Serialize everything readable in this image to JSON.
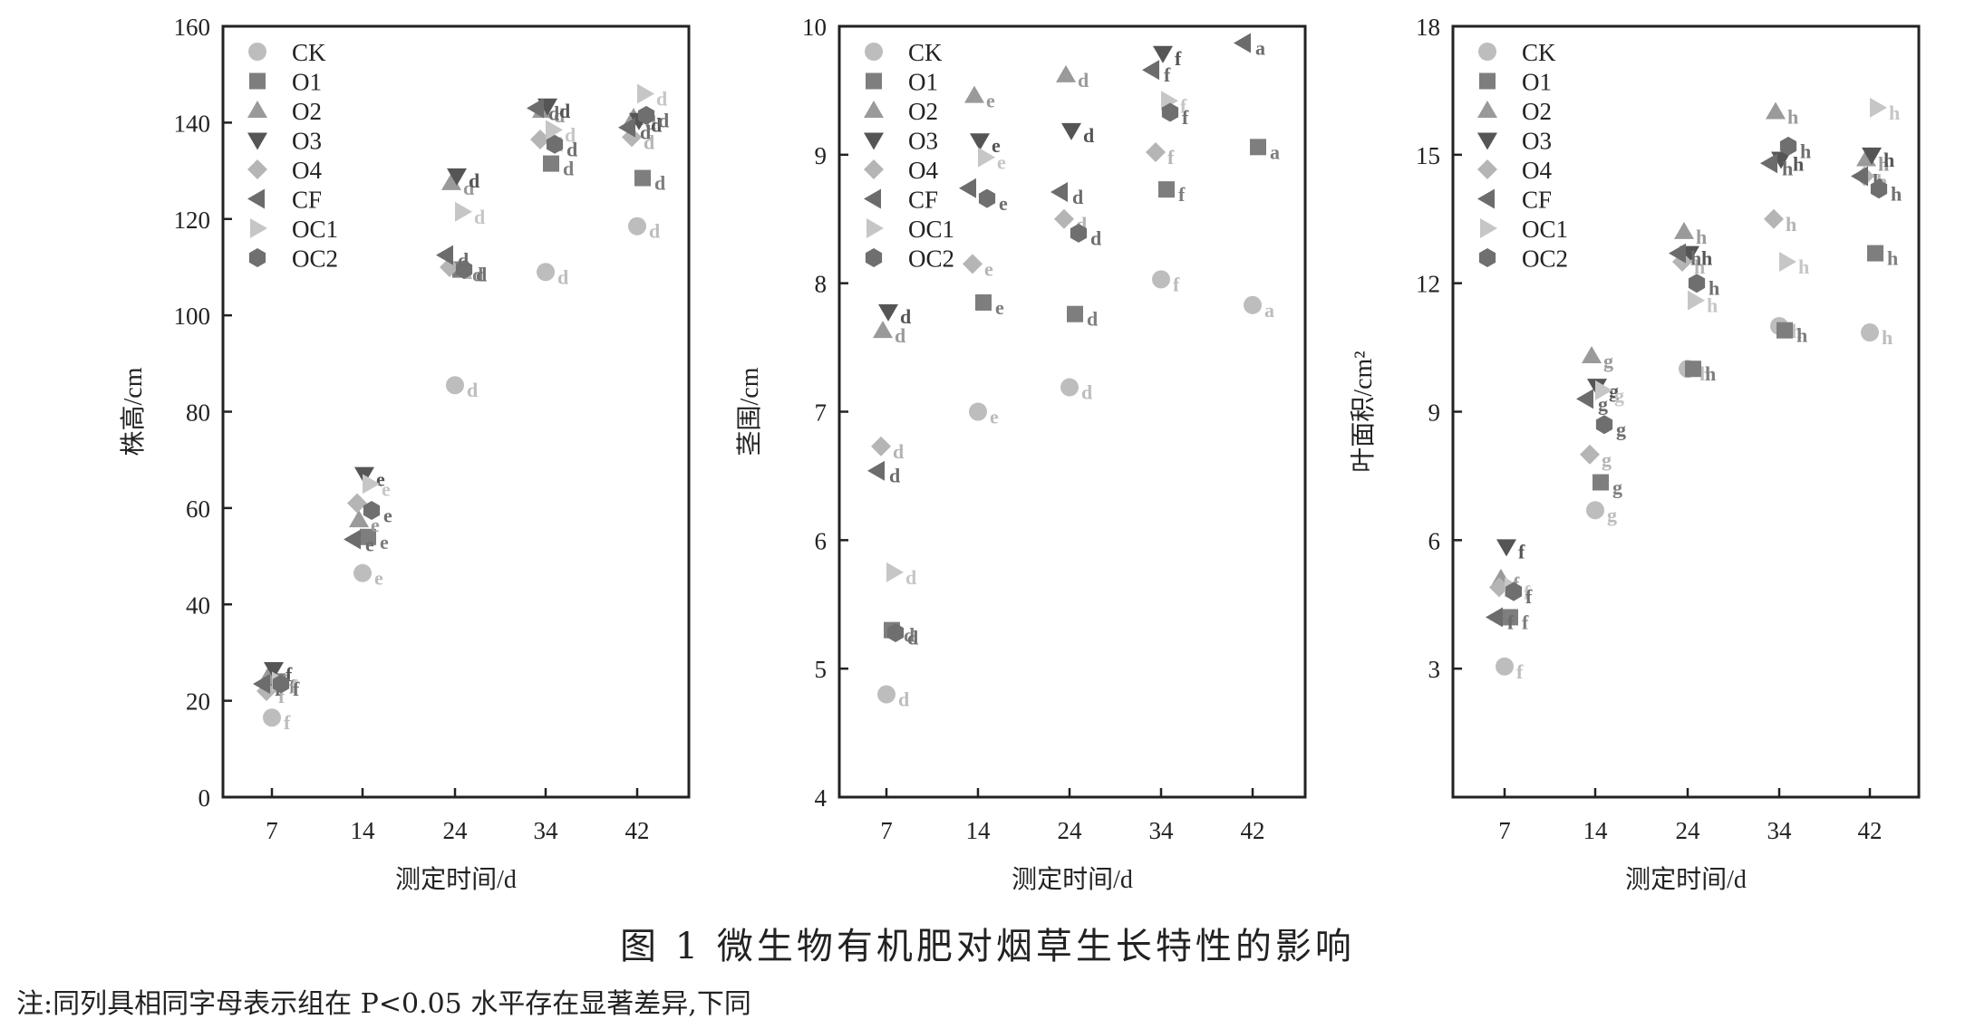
{
  "caption": "图 1   微生物有机肥对烟草生长特性的影响",
  "note": "注:同列具相同字母表示组在 P<0.05 水平存在显著差异,下同",
  "legend": [
    {
      "name": "CK",
      "marker": "circle",
      "color": "#bdbdbd"
    },
    {
      "name": "O1",
      "marker": "square",
      "color": "#7e7e7e"
    },
    {
      "name": "O2",
      "marker": "triangle-up",
      "color": "#9a9a9a"
    },
    {
      "name": "O3",
      "marker": "triangle-down",
      "color": "#555555"
    },
    {
      "name": "O4",
      "marker": "diamond",
      "color": "#b5b5b5"
    },
    {
      "name": "CF",
      "marker": "triangle-left",
      "color": "#6c6c6c"
    },
    {
      "name": "OC1",
      "marker": "triangle-right",
      "color": "#c6c6c6"
    },
    {
      "name": "OC2",
      "marker": "hexagon",
      "color": "#6f6f6f"
    }
  ],
  "chart_data": [
    {
      "type": "scatter",
      "xlabel": "测定时间/d",
      "ylabel": "株高/cm",
      "categories": [
        "7",
        "14",
        "24",
        "34",
        "42"
      ],
      "ylim": [
        0,
        160
      ],
      "yticks": [
        0,
        20,
        40,
        60,
        80,
        100,
        120,
        140,
        160
      ],
      "legend_position": "top-left",
      "series": [
        {
          "name": "CK",
          "values": [
            16.5,
            46.5,
            85.5,
            109,
            118.5
          ],
          "letters": [
            "f",
            "e",
            "d",
            "d",
            "d"
          ]
        },
        {
          "name": "O1",
          "values": [
            24,
            54,
            109.5,
            131.5,
            128.5
          ],
          "letters": [
            "f",
            "e",
            "d",
            "d",
            "d"
          ]
        },
        {
          "name": "O2",
          "values": [
            25,
            57.5,
            127.5,
            142.5,
            141
          ],
          "letters": [
            "f",
            "e",
            "d",
            "d",
            "d"
          ]
        },
        {
          "name": "O3",
          "values": [
            26.5,
            67,
            129,
            143.5,
            140.5
          ],
          "letters": [
            "f",
            "e",
            "d",
            "d",
            "d"
          ]
        },
        {
          "name": "O4",
          "values": [
            22,
            61,
            110,
            136.5,
            137
          ],
          "letters": [
            "f",
            "e",
            "d",
            "d",
            "d"
          ]
        },
        {
          "name": "CF",
          "values": [
            23.5,
            53.5,
            112.5,
            143,
            139
          ],
          "letters": [
            "f",
            "e",
            "d",
            "d",
            "d"
          ]
        },
        {
          "name": "OC1",
          "values": [
            24,
            65,
            121.5,
            138.5,
            146
          ],
          "letters": [
            "f",
            "e",
            "d",
            "d",
            "d"
          ]
        },
        {
          "name": "OC2",
          "values": [
            23.5,
            59.5,
            109.5,
            135.5,
            141.5
          ],
          "letters": [
            "f",
            "e",
            "d",
            "d",
            "d"
          ]
        }
      ]
    },
    {
      "type": "scatter",
      "xlabel": "测定时间/d",
      "ylabel": "茎围/cm",
      "categories": [
        "7",
        "14",
        "24",
        "34",
        "42"
      ],
      "ylim": [
        4,
        10
      ],
      "yticks": [
        4,
        5,
        6,
        7,
        8,
        9,
        10
      ],
      "legend_position": "top-left",
      "series": [
        {
          "name": "CK",
          "values": [
            4.8,
            7.0,
            7.19,
            8.03,
            7.83
          ],
          "letters": [
            "d",
            "e",
            "d",
            "f",
            "a"
          ]
        },
        {
          "name": "O1",
          "values": [
            5.3,
            7.85,
            7.76,
            8.73,
            9.06
          ],
          "letters": [
            "d",
            "e",
            "d",
            "f",
            "a"
          ]
        },
        {
          "name": "O2",
          "values": [
            7.63,
            9.46,
            9.62,
            null,
            null
          ],
          "letters": [
            "d",
            "e",
            "d",
            "",
            ""
          ]
        },
        {
          "name": "O3",
          "values": [
            7.78,
            9.11,
            9.19,
            9.79,
            null
          ],
          "letters": [
            "d",
            "e",
            "d",
            "f",
            ""
          ]
        },
        {
          "name": "O4",
          "values": [
            6.73,
            8.15,
            8.5,
            9.02,
            null
          ],
          "letters": [
            "d",
            "e",
            "d",
            "f",
            ""
          ]
        },
        {
          "name": "CF",
          "values": [
            6.54,
            8.74,
            8.71,
            9.66,
            9.87
          ],
          "letters": [
            "d",
            "e",
            "d",
            "f",
            "a"
          ]
        },
        {
          "name": "OC1",
          "values": [
            5.75,
            8.98,
            null,
            9.42,
            null
          ],
          "letters": [
            "d",
            "e",
            "",
            "f",
            ""
          ]
        },
        {
          "name": "OC2",
          "values": [
            5.28,
            8.66,
            8.39,
            9.33,
            null
          ],
          "letters": [
            "d",
            "e",
            "d",
            "f",
            ""
          ]
        }
      ]
    },
    {
      "type": "scatter",
      "xlabel": "测定时间/d",
      "ylabel": "叶面积/cm²",
      "categories": [
        "7",
        "14",
        "24",
        "34",
        "42"
      ],
      "ylim": [
        0,
        18
      ],
      "yticks": [
        3,
        6,
        9,
        12,
        15,
        18
      ],
      "legend_position": "top-left",
      "series": [
        {
          "name": "CK",
          "values": [
            3.05,
            6.7,
            10.0,
            11.0,
            10.85
          ],
          "letters": [
            "f",
            "g",
            "h",
            "h",
            "h"
          ]
        },
        {
          "name": "O1",
          "values": [
            4.2,
            7.35,
            10.0,
            10.9,
            12.7
          ],
          "letters": [
            "f",
            "g",
            "h",
            "h",
            "h"
          ]
        },
        {
          "name": "O2",
          "values": [
            5.1,
            10.3,
            13.2,
            16.0,
            14.9
          ],
          "letters": [
            "f",
            "g",
            "h",
            "h",
            "h"
          ]
        },
        {
          "name": "O3",
          "values": [
            5.85,
            9.6,
            12.7,
            14.9,
            15.0
          ],
          "letters": [
            "f",
            "g",
            "h",
            "h",
            "h"
          ]
        },
        {
          "name": "O4",
          "values": [
            4.9,
            8.0,
            12.5,
            13.5,
            14.5
          ],
          "letters": [
            "f",
            "g",
            "h",
            "h",
            "h"
          ]
        },
        {
          "name": "CF",
          "values": [
            4.2,
            9.3,
            12.7,
            14.8,
            14.5
          ],
          "letters": [
            "f",
            "g",
            "h",
            "h",
            "h"
          ]
        },
        {
          "name": "OC1",
          "values": [
            4.9,
            9.5,
            11.6,
            12.5,
            16.1
          ],
          "letters": [
            "f",
            "g",
            "h",
            "h",
            "h"
          ]
        },
        {
          "name": "OC2",
          "values": [
            4.8,
            8.7,
            12.0,
            15.2,
            14.2
          ],
          "letters": [
            "f",
            "g",
            "h",
            "h",
            "h"
          ]
        }
      ]
    }
  ]
}
